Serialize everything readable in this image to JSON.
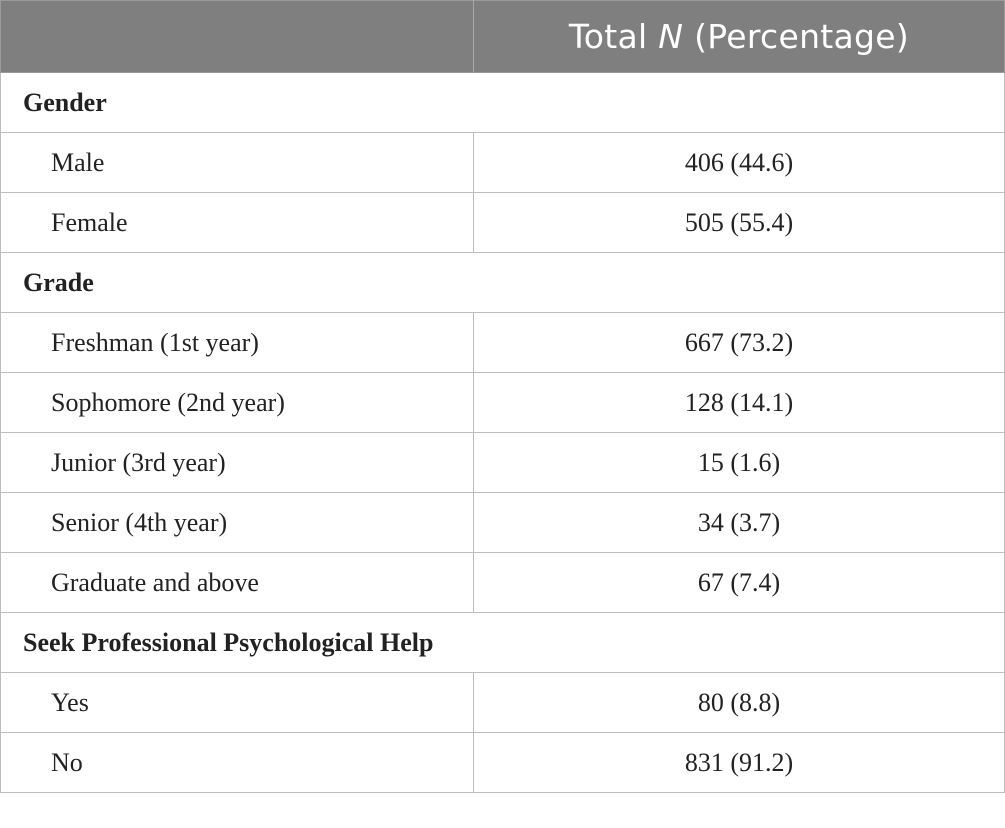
{
  "header": {
    "col1": "",
    "col2_prefix": "Total ",
    "col2_italic": "N",
    "col2_suffix": " (Percentage)"
  },
  "sections": [
    {
      "title": "Gender",
      "rows": [
        {
          "label": "Male",
          "value": "406 (44.6)"
        },
        {
          "label": "Female",
          "value": "505 (55.4)"
        }
      ]
    },
    {
      "title": "Grade",
      "rows": [
        {
          "label": "Freshman (1st year)",
          "value": "667 (73.2)"
        },
        {
          "label": "Sophomore (2nd year)",
          "value": "128 (14.1)"
        },
        {
          "label": "Junior (3rd year)",
          "value": "15 (1.6)"
        },
        {
          "label": "Senior (4th year)",
          "value": "34 (3.7)"
        },
        {
          "label": "Graduate and above",
          "value": "67 (7.4)"
        }
      ]
    },
    {
      "title": "Seek Professional Psychological Help",
      "rows": [
        {
          "label": "Yes",
          "value": "80 (8.8)"
        },
        {
          "label": "No",
          "value": "831 (91.2)"
        }
      ]
    }
  ]
}
